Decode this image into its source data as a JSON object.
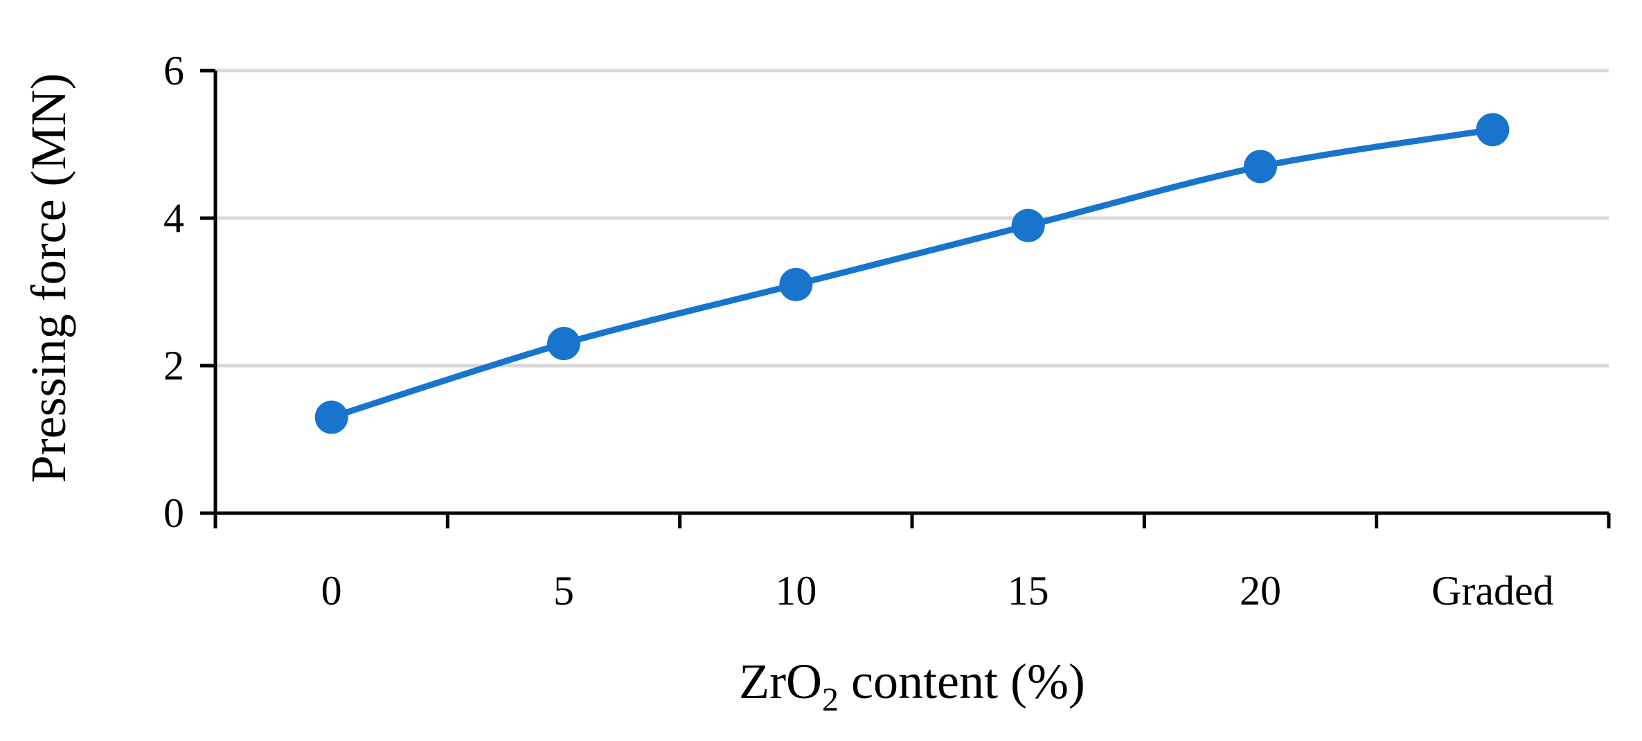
{
  "chart_data": {
    "type": "line",
    "categories": [
      "0",
      "5",
      "10",
      "15",
      "20",
      "Graded"
    ],
    "series": [
      {
        "values": [
          1.3,
          2.3,
          3.1,
          3.9,
          4.7,
          5.2
        ]
      }
    ],
    "title": "",
    "xlabel": {
      "main": "ZrO",
      "subscript": "2",
      "rest": " content (%)"
    },
    "ylabel": "Pressing force (MN)",
    "ylim": [
      0,
      6
    ],
    "yticks": [
      "0",
      "2",
      "4",
      "6"
    ],
    "grid": true,
    "legend": "none",
    "colors": {
      "series": "#1874CD",
      "grid": "#D9D9D9",
      "axis": "#000000"
    },
    "smooth": true
  }
}
